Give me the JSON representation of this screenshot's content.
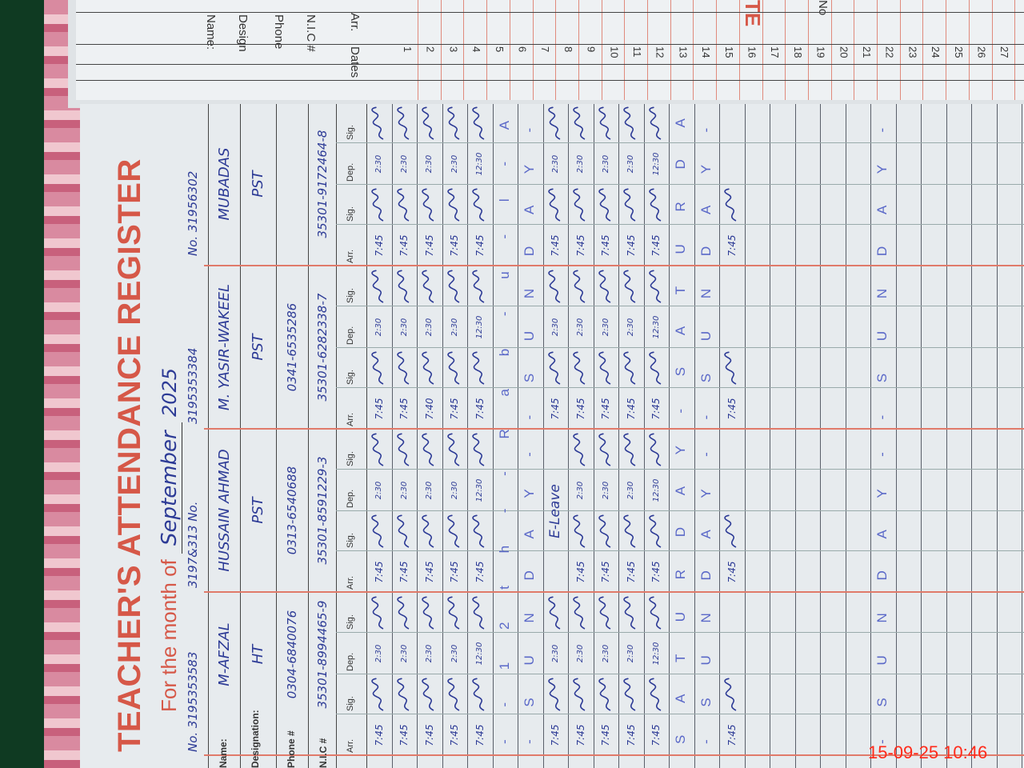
{
  "other_page": {
    "title_fragment": "TE",
    "no_label": "No",
    "labels": [
      "Name:",
      "Design",
      "Phone",
      "N.I.C #"
    ],
    "dates_label": "Dates",
    "arr_label": "Arr.",
    "dates": [
      "1",
      "2",
      "3",
      "4",
      "5",
      "6",
      "7",
      "8",
      "9",
      "10",
      "11",
      "12",
      "13",
      "14",
      "15",
      "16",
      "17",
      "18",
      "19",
      "20",
      "21",
      "22",
      "23",
      "24",
      "25",
      "26",
      "27"
    ]
  },
  "register": {
    "title": "TEACHER'S ATTENDANCE REGISTER",
    "month_label": "For the month of",
    "month_value": "September",
    "year": "2025",
    "nos": [
      "No. 3195353583",
      "3197&313 No.",
      "3195353384",
      "No. 31956302"
    ],
    "row_labels": [
      "Name:",
      "Designation:",
      "Phone #",
      "N.I.C #"
    ],
    "subheaders": [
      "Arr.",
      "Sig.",
      "Dep.",
      "Sig."
    ],
    "teachers": [
      {
        "name": "M-AFZAL",
        "designation": "HT",
        "phone": "0304-6840076",
        "nic": "35301-8994465-9"
      },
      {
        "name": "HUSSAIN AHMAD",
        "designation": "PST",
        "phone": "0313-6540688",
        "nic": "35301-8591229-3"
      },
      {
        "name": "M. YASIR-WAKEEL",
        "designation": "PST",
        "phone": "0341-6535286",
        "nic": "35301-6282338-7"
      },
      {
        "name": "MUBADAS",
        "designation": "PST",
        "phone": "",
        "nic": "35301-9172464-8"
      }
    ],
    "days": [
      {
        "cells": [
          [
            "7:45",
            "2:30"
          ],
          [
            "7:45",
            "2:30"
          ],
          [
            "7:45",
            "2:30"
          ],
          [
            "7:45",
            "2:30"
          ]
        ]
      },
      {
        "cells": [
          [
            "7:45",
            "2:30"
          ],
          [
            "7:45",
            "2:30"
          ],
          [
            "7:45",
            "2:30"
          ],
          [
            "7:45",
            "2:30"
          ]
        ]
      },
      {
        "cells": [
          [
            "7:45",
            "2:30"
          ],
          [
            "7:45",
            "2:30"
          ],
          [
            "7:40",
            "2:30"
          ],
          [
            "7:45",
            "2:30"
          ]
        ]
      },
      {
        "cells": [
          [
            "7:45",
            "2:30"
          ],
          [
            "7:45",
            "2:30"
          ],
          [
            "7:45",
            "2:30"
          ],
          [
            "7:45",
            "2:30"
          ]
        ]
      },
      {
        "cells": [
          [
            "7:45",
            "12:30"
          ],
          [
            "7:45",
            "12:30"
          ],
          [
            "7:45",
            "12:30"
          ],
          [
            "7:45",
            "12:30"
          ]
        ]
      },
      {
        "banner": "- - 1 2 t h - - R a b - u - l - A w a l -"
      },
      {
        "banner": "- S U N D A Y - - S U N D A Y - - S U N D A Y -"
      },
      {
        "cells": [
          [
            "7:45",
            "2:30"
          ],
          null,
          [
            "7:45",
            "2:30"
          ],
          [
            "7:45",
            "2:30"
          ]
        ],
        "notes": [
          null,
          "E-Leave",
          null,
          null
        ]
      },
      {
        "cells": [
          [
            "7:45",
            "2:30"
          ],
          [
            "7:45",
            "2:30"
          ],
          [
            "7:45",
            "2:30"
          ],
          [
            "7:45",
            "2:30"
          ]
        ]
      },
      {
        "cells": [
          [
            "7:45",
            "2:30"
          ],
          [
            "7:45",
            "2:30"
          ],
          [
            "7:45",
            "2:30"
          ],
          [
            "7:45",
            "2:30"
          ]
        ]
      },
      {
        "cells": [
          [
            "7:45",
            "2:30"
          ],
          [
            "7:45",
            "2:30"
          ],
          [
            "7:45",
            "2:30"
          ],
          [
            "7:45",
            "2:30"
          ]
        ]
      },
      {
        "cells": [
          [
            "7:45",
            "12:30"
          ],
          [
            "7:45",
            "12:30"
          ],
          [
            "7:45",
            "12:30"
          ],
          [
            "7:45",
            "12:30"
          ]
        ]
      },
      {
        "banner": "S A T U R D A Y - S A T U R D A Y"
      },
      {
        "banner": "- S U N D A Y - - S U N D A Y -"
      },
      {
        "cells": [
          [
            "7:45",
            ""
          ],
          [
            "7:45",
            ""
          ],
          [
            "7:45",
            ""
          ],
          [
            "7:45",
            ""
          ]
        ]
      },
      {},
      {},
      {},
      {},
      {},
      {
        "banner": "- S U N D A Y - - S U N D A Y -"
      },
      {},
      {},
      {},
      {},
      {}
    ]
  },
  "camera_timestamp": "15-09-25  10:46",
  "colors": {
    "ink": "#2d3b96",
    "print_red": "#d65848",
    "paper": "#e7ebee",
    "stamp": "#ff2a1a"
  }
}
